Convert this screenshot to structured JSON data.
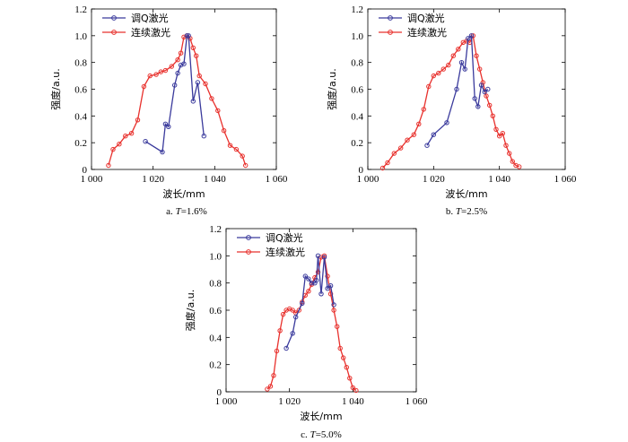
{
  "figure": {
    "colors": {
      "qswitch": "#3a3a9c",
      "cw": "#e8312d"
    }
  },
  "chart_data": [
    {
      "type": "line",
      "caption": {
        "prefix": "a.",
        "var": "T",
        "rest": "=1.6%"
      },
      "xlabel": "波长/mm",
      "ylabel": "强度/a.u.",
      "xlim": [
        1000,
        1060
      ],
      "ylim": [
        0,
        1.2
      ],
      "xticks": [
        {
          "v": 1000,
          "label": "1 000"
        },
        {
          "v": 1020,
          "label": "1 020"
        },
        {
          "v": 1040,
          "label": "1 040"
        },
        {
          "v": 1060,
          "label": "1 060"
        }
      ],
      "yticks": [
        {
          "v": 0,
          "label": "0"
        },
        {
          "v": 0.2,
          "label": "0.2"
        },
        {
          "v": 0.4,
          "label": "0.4"
        },
        {
          "v": 0.6,
          "label": "0.6"
        },
        {
          "v": 0.8,
          "label": "0.8"
        },
        {
          "v": 1.0,
          "label": "1.0"
        },
        {
          "v": 1.2,
          "label": "1.2"
        }
      ],
      "series": [
        {
          "name": "调Q激光",
          "color_key": "qswitch",
          "x": [
            1017.5,
            1023,
            1024,
            1025,
            1027,
            1028,
            1029,
            1030,
            1031,
            1031.5,
            1033,
            1034.5,
            1036.5
          ],
          "y": [
            0.21,
            0.13,
            0.34,
            0.32,
            0.63,
            0.72,
            0.78,
            0.79,
            1.0,
            1.0,
            0.51,
            0.65,
            0.25
          ]
        },
        {
          "name": "连续激光",
          "color_key": "cw",
          "x": [
            1005.5,
            1007,
            1009,
            1011,
            1013,
            1015,
            1017,
            1019,
            1021,
            1022.5,
            1024,
            1026,
            1028,
            1029,
            1030,
            1031,
            1032,
            1033,
            1034,
            1035,
            1037,
            1039,
            1041,
            1043,
            1045,
            1047,
            1049,
            1050
          ],
          "y": [
            0.03,
            0.15,
            0.19,
            0.25,
            0.27,
            0.37,
            0.62,
            0.7,
            0.71,
            0.73,
            0.74,
            0.77,
            0.82,
            0.87,
            0.99,
            1.0,
            0.98,
            0.91,
            0.85,
            0.7,
            0.64,
            0.53,
            0.44,
            0.29,
            0.18,
            0.15,
            0.1,
            0.03
          ]
        }
      ]
    },
    {
      "type": "line",
      "caption": {
        "prefix": "b.",
        "var": "T",
        "rest": "=2.5%"
      },
      "xlabel": "波长/mm",
      "ylabel": "强度/a.u.",
      "xlim": [
        1000,
        1060
      ],
      "ylim": [
        0,
        1.2
      ],
      "xticks": [
        {
          "v": 1000,
          "label": "1 000"
        },
        {
          "v": 1020,
          "label": "1 020"
        },
        {
          "v": 1040,
          "label": "1 040"
        },
        {
          "v": 1060,
          "label": "1 060"
        }
      ],
      "yticks": [
        {
          "v": 0,
          "label": "0"
        },
        {
          "v": 0.2,
          "label": "0.2"
        },
        {
          "v": 0.4,
          "label": "0.4"
        },
        {
          "v": 0.6,
          "label": "0.6"
        },
        {
          "v": 0.8,
          "label": "0.8"
        },
        {
          "v": 1.0,
          "label": "1.0"
        },
        {
          "v": 1.2,
          "label": "1.2"
        }
      ],
      "series": [
        {
          "name": "调Q激光",
          "color_key": "qswitch",
          "x": [
            1018,
            1020,
            1024,
            1027,
            1028.5,
            1029.5,
            1030.5,
            1031.5,
            1032.5,
            1033.5,
            1034.5,
            1035.5,
            1036.5
          ],
          "y": [
            0.18,
            0.26,
            0.35,
            0.6,
            0.8,
            0.75,
            0.98,
            1.0,
            0.53,
            0.47,
            0.63,
            0.58,
            0.6
          ]
        },
        {
          "name": "连续激光",
          "color_key": "cw",
          "x": [
            1004.5,
            1006,
            1008,
            1010,
            1012,
            1014,
            1015.5,
            1017,
            1018.5,
            1020,
            1021.5,
            1023,
            1024.5,
            1026,
            1027.5,
            1029,
            1030,
            1031,
            1032,
            1033,
            1034,
            1035,
            1036,
            1037,
            1038,
            1039,
            1040,
            1041,
            1042,
            1043,
            1044,
            1045,
            1046
          ],
          "y": [
            0.01,
            0.05,
            0.12,
            0.16,
            0.22,
            0.26,
            0.34,
            0.45,
            0.62,
            0.7,
            0.72,
            0.75,
            0.78,
            0.85,
            0.9,
            0.95,
            0.96,
            0.95,
            1.0,
            0.85,
            0.75,
            0.65,
            0.55,
            0.48,
            0.4,
            0.3,
            0.25,
            0.27,
            0.18,
            0.12,
            0.06,
            0.03,
            0.02
          ]
        }
      ]
    },
    {
      "type": "line",
      "caption": {
        "prefix": "c.",
        "var": "T",
        "rest": "=5.0%"
      },
      "xlabel": "波长/mm",
      "ylabel": "强度/a.u.",
      "xlim": [
        1000,
        1060
      ],
      "ylim": [
        0,
        1.2
      ],
      "xticks": [
        {
          "v": 1000,
          "label": "1 000"
        },
        {
          "v": 1020,
          "label": "1 020"
        },
        {
          "v": 1040,
          "label": "1 040"
        },
        {
          "v": 1060,
          "label": "1 060"
        }
      ],
      "yticks": [
        {
          "v": 0,
          "label": "0"
        },
        {
          "v": 0.2,
          "label": "0.2"
        },
        {
          "v": 0.4,
          "label": "0.4"
        },
        {
          "v": 0.6,
          "label": "0.6"
        },
        {
          "v": 0.8,
          "label": "0.8"
        },
        {
          "v": 1.0,
          "label": "1.0"
        },
        {
          "v": 1.2,
          "label": "1.2"
        }
      ],
      "series": [
        {
          "name": "调Q激光",
          "color_key": "qswitch",
          "x": [
            1019,
            1021,
            1022,
            1024,
            1025,
            1026,
            1027,
            1028,
            1028.5,
            1029,
            1030,
            1031,
            1032,
            1033,
            1034
          ],
          "y": [
            0.32,
            0.43,
            0.55,
            0.65,
            0.85,
            0.83,
            0.8,
            0.8,
            0.82,
            1.0,
            0.72,
            0.99,
            0.76,
            0.78,
            0.64
          ]
        },
        {
          "name": "连续激光",
          "color_key": "cw",
          "x": [
            1013,
            1014,
            1015,
            1016,
            1017,
            1018,
            1019,
            1020,
            1021,
            1022,
            1023,
            1024,
            1025,
            1026,
            1027,
            1028,
            1029,
            1030,
            1031,
            1032,
            1033,
            1034,
            1035,
            1036,
            1037,
            1038,
            1039,
            1040,
            1041
          ],
          "y": [
            0.02,
            0.04,
            0.12,
            0.3,
            0.45,
            0.57,
            0.6,
            0.61,
            0.6,
            0.58,
            0.6,
            0.66,
            0.71,
            0.74,
            0.79,
            0.84,
            0.88,
            0.99,
            1.0,
            0.85,
            0.72,
            0.6,
            0.48,
            0.32,
            0.25,
            0.18,
            0.1,
            0.03,
            0.01
          ]
        }
      ]
    }
  ]
}
